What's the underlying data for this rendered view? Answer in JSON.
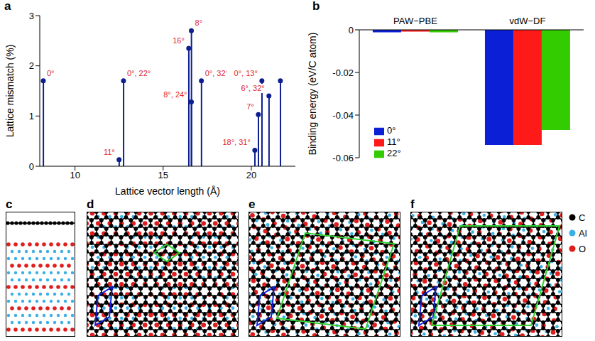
{
  "panels": [
    "a",
    "b",
    "c",
    "d",
    "e",
    "f"
  ],
  "chart_data": [
    {
      "type": "stem",
      "x": [
        8.2,
        12.5,
        12.75,
        16.45,
        16.6,
        16.6,
        17.17,
        20.2,
        20.4,
        20.6,
        21.0,
        21.65
      ],
      "values": [
        1.7,
        0.13,
        1.7,
        2.35,
        2.7,
        1.28,
        1.7,
        0.32,
        1.03,
        1.7,
        1.4,
        1.7
      ],
      "annotations": [
        "0°",
        "11°",
        "0°, 22°",
        "16°",
        "8°",
        "8°, 24°",
        "0°, 32°",
        "18°, 31°",
        "7°",
        "0°, 13°",
        "6°, 32°",
        null
      ],
      "color": "#0d1f8f",
      "xlabel": "Lattice vector length (Å)",
      "ylabel": "Lattice mismatch (%)",
      "xlim": [
        8,
        22.5
      ],
      "xticks": [
        10,
        15,
        20
      ],
      "ylim": [
        0,
        3
      ],
      "yticks": [
        0,
        1,
        2,
        3
      ],
      "grid": false
    },
    {
      "type": "bar",
      "categories": [
        "PAW−PBE",
        "vdW−DF"
      ],
      "series": [
        {
          "name": "0°",
          "color": "#0a1fd6",
          "values": [
            -0.0012,
            -0.054
          ]
        },
        {
          "name": "11°",
          "color": "#ff1a1a",
          "values": [
            -0.0008,
            -0.054
          ]
        },
        {
          "name": "22°",
          "color": "#33cc00",
          "values": [
            -0.0012,
            -0.047
          ]
        }
      ],
      "ylabel": "Binding energy (eV/C atom)",
      "ylim": [
        -0.06,
        0
      ],
      "yticks": [
        -0.06,
        -0.04,
        -0.02,
        0
      ],
      "legend": "lower left",
      "grid": false
    }
  ],
  "atom_legend": [
    {
      "label": "C",
      "color": "#000000"
    },
    {
      "label": "Al",
      "color": "#3ab0e6"
    },
    {
      "label": "O",
      "color": "#e01e1e"
    }
  ]
}
